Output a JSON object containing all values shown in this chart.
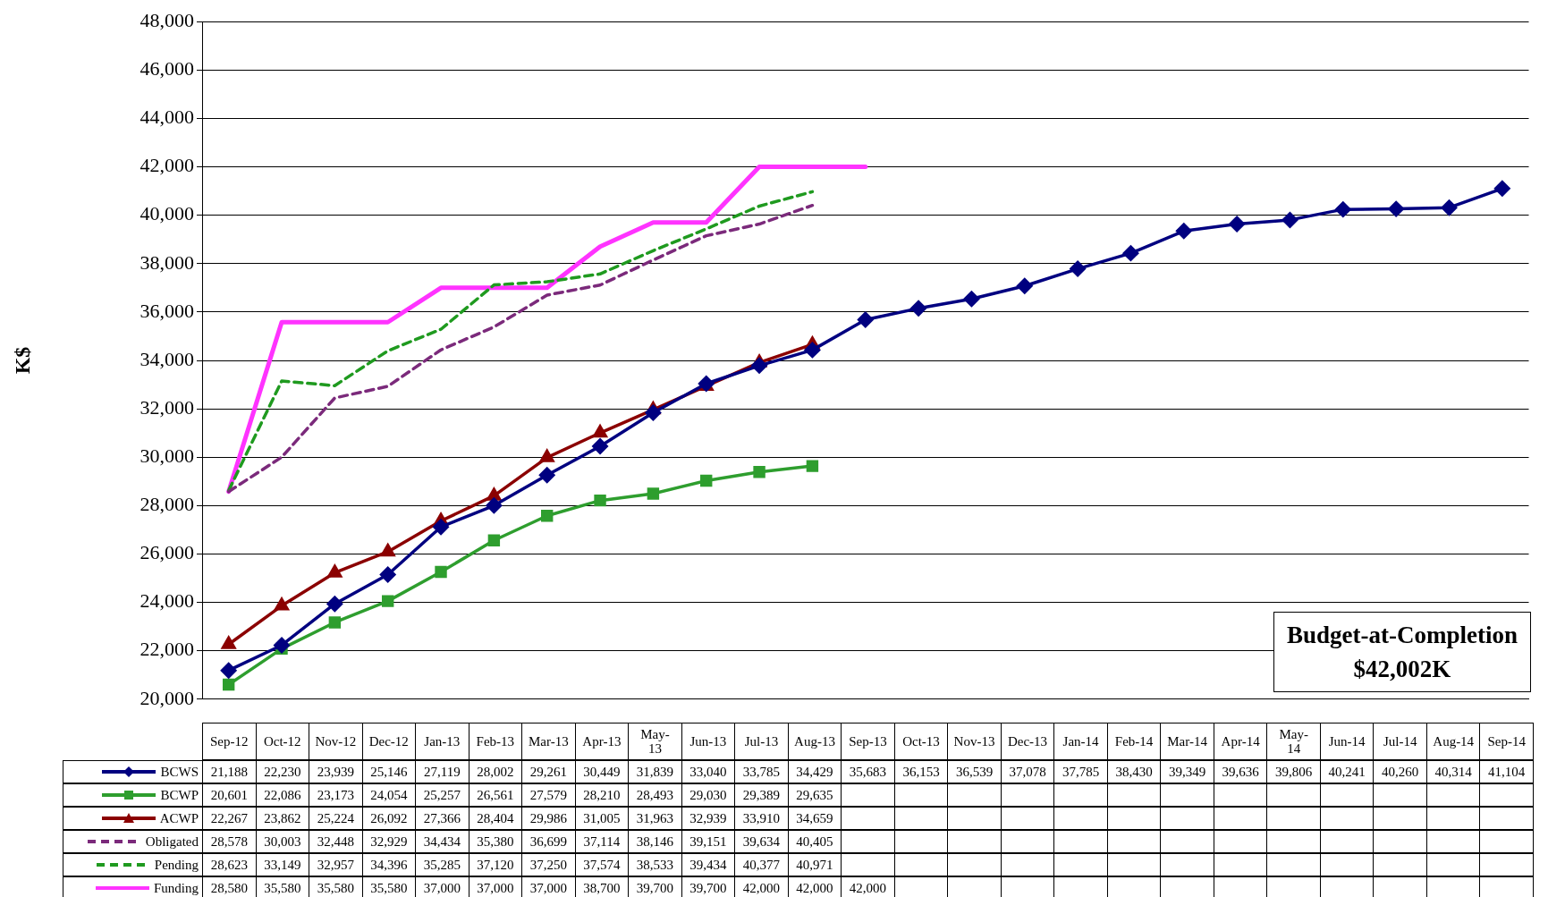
{
  "chart_data": {
    "type": "line",
    "ylabel": "K$",
    "categories": [
      "Sep-12",
      "Oct-12",
      "Nov-12",
      "Dec-12",
      "Jan-13",
      "Feb-13",
      "Mar-13",
      "Apr-13",
      "May-13",
      "Jun-13",
      "Jul-13",
      "Aug-13",
      "Sep-13",
      "Oct-13",
      "Nov-13",
      "Dec-13",
      "Jan-14",
      "Feb-14",
      "Mar-14",
      "Apr-14",
      "May-14",
      "Jun-14",
      "Jul-14",
      "Aug-14",
      "Sep-14"
    ],
    "series": [
      {
        "name": "BCWS",
        "color": "#000080",
        "marker": "diamond",
        "line_style": "solid",
        "values": [
          21188,
          22230,
          23939,
          25146,
          27119,
          28002,
          29261,
          30449,
          31839,
          33040,
          33785,
          34429,
          35683,
          36153,
          36539,
          37078,
          37785,
          38430,
          39349,
          39636,
          39806,
          40241,
          40260,
          40314,
          41104
        ],
        "value_labels": [
          "21,188",
          "22,230",
          "23,939",
          "25,146",
          "27,119",
          "28,002",
          "29,261",
          "30,449",
          "31,839",
          "33,040",
          "33,785",
          "34,429",
          "35,683",
          "36,153",
          "36,539",
          "37,078",
          "37,785",
          "38,430",
          "39,349",
          "39,636",
          "39,806",
          "40,241",
          "40,260",
          "40,314",
          "41,104"
        ]
      },
      {
        "name": "BCWP",
        "color": "#2e9e2e",
        "marker": "square",
        "line_style": "solid",
        "values": [
          20601,
          22086,
          23173,
          24054,
          25257,
          26561,
          27579,
          28210,
          28493,
          29030,
          29389,
          29635,
          null,
          null,
          null,
          null,
          null,
          null,
          null,
          null,
          null,
          null,
          null,
          null,
          null
        ],
        "value_labels": [
          "20,601",
          "22,086",
          "23,173",
          "24,054",
          "25,257",
          "26,561",
          "27,579",
          "28,210",
          "28,493",
          "29,030",
          "29,389",
          "29,635",
          null,
          null,
          null,
          null,
          null,
          null,
          null,
          null,
          null,
          null,
          null,
          null,
          null
        ]
      },
      {
        "name": "ACWP",
        "color": "#8b0000",
        "marker": "triangle",
        "line_style": "solid",
        "values": [
          22267,
          23862,
          25224,
          26092,
          27366,
          28404,
          29986,
          31005,
          31963,
          32939,
          33910,
          34659,
          null,
          null,
          null,
          null,
          null,
          null,
          null,
          null,
          null,
          null,
          null,
          null,
          null
        ],
        "value_labels": [
          "22,267",
          "23,862",
          "25,224",
          "26,092",
          "27,366",
          "28,404",
          "29,986",
          "31,005",
          "31,963",
          "32,939",
          "33,910",
          "34,659",
          null,
          null,
          null,
          null,
          null,
          null,
          null,
          null,
          null,
          null,
          null,
          null,
          null
        ]
      },
      {
        "name": "Obligated",
        "color": "#7b2a7b",
        "marker": "none",
        "line_style": "dashed",
        "values": [
          28578,
          30003,
          32448,
          32929,
          34434,
          35380,
          36699,
          37114,
          38146,
          39151,
          39634,
          40405,
          null,
          null,
          null,
          null,
          null,
          null,
          null,
          null,
          null,
          null,
          null,
          null,
          null
        ],
        "value_labels": [
          "28,578",
          "30,003",
          "32,448",
          "32,929",
          "34,434",
          "35,380",
          "36,699",
          "37,114",
          "38,146",
          "39,151",
          "39,634",
          "40,405",
          null,
          null,
          null,
          null,
          null,
          null,
          null,
          null,
          null,
          null,
          null,
          null,
          null
        ]
      },
      {
        "name": "Pending",
        "color": "#1f9a1f",
        "marker": "none",
        "line_style": "dashed",
        "values": [
          28623,
          33149,
          32957,
          34396,
          35285,
          37120,
          37250,
          37574,
          38533,
          39434,
          40377,
          40971,
          null,
          null,
          null,
          null,
          null,
          null,
          null,
          null,
          null,
          null,
          null,
          null,
          null
        ],
        "value_labels": [
          "28,623",
          "33,149",
          "32,957",
          "34,396",
          "35,285",
          "37,120",
          "37,250",
          "37,574",
          "38,533",
          "39,434",
          "40,377",
          "40,971",
          null,
          null,
          null,
          null,
          null,
          null,
          null,
          null,
          null,
          null,
          null,
          null,
          null
        ]
      },
      {
        "name": "Funding",
        "color": "#ff33ff",
        "marker": "none",
        "line_style": "solid",
        "values": [
          28580,
          35580,
          35580,
          35580,
          37000,
          37000,
          37000,
          38700,
          39700,
          39700,
          42000,
          42000,
          42000,
          null,
          null,
          null,
          null,
          null,
          null,
          null,
          null,
          null,
          null,
          null,
          null
        ],
        "value_labels": [
          "28,580",
          "35,580",
          "35,580",
          "35,580",
          "37,000",
          "37,000",
          "37,000",
          "38,700",
          "39,700",
          "39,700",
          "42,000",
          "42,000",
          "42,000",
          null,
          null,
          null,
          null,
          null,
          null,
          null,
          null,
          null,
          null,
          null,
          null
        ]
      }
    ],
    "ylim": [
      20000,
      48000
    ],
    "yticks": [
      {
        "value": 20000,
        "label": "20,000"
      },
      {
        "value": 22000,
        "label": "22,000"
      },
      {
        "value": 24000,
        "label": "24,000"
      },
      {
        "value": 26000,
        "label": "26,000"
      },
      {
        "value": 28000,
        "label": "28,000"
      },
      {
        "value": 30000,
        "label": "30,000"
      },
      {
        "value": 32000,
        "label": "32,000"
      },
      {
        "value": 34000,
        "label": "34,000"
      },
      {
        "value": 36000,
        "label": "36,000"
      },
      {
        "value": 38000,
        "label": "38,000"
      },
      {
        "value": 40000,
        "label": "40,000"
      },
      {
        "value": 42000,
        "label": "42,000"
      },
      {
        "value": 44000,
        "label": "44,000"
      },
      {
        "value": 46000,
        "label": "46,000"
      },
      {
        "value": 48000,
        "label": "48,000"
      }
    ],
    "grid": "y",
    "legend": "bottom left",
    "annotations": [
      "Budget-at-Completion",
      "$42,002K"
    ]
  }
}
